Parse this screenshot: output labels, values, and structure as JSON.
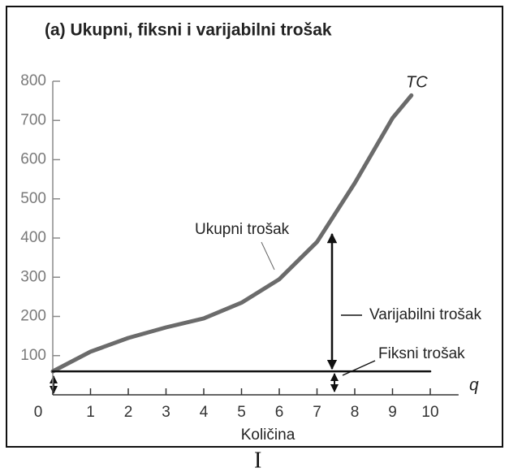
{
  "chart_data": {
    "type": "line",
    "title": "(a) Ukupni, fiksni i varijabilni trošak",
    "x_label": "Količina",
    "x_symbol": "q",
    "x": [
      0,
      1,
      2,
      3,
      4,
      5,
      6,
      7,
      8,
      9,
      9.5,
      10
    ],
    "series": [
      {
        "name": "TC",
        "color": "#6b6b6b",
        "values": [
          60,
          110,
          145,
          172,
          195,
          235,
          295,
          390,
          540,
          706,
          764,
          null
        ]
      },
      {
        "name": "Fiksni trošak",
        "color": "#111111",
        "values": [
          60,
          60,
          60,
          60,
          60,
          60,
          60,
          60,
          60,
          60,
          60,
          60
        ]
      }
    ],
    "annotations": [
      "Ukupni trošak",
      "Varijabilni trošak"
    ],
    "xlim": [
      0,
      10.75
    ],
    "xticks": [
      0,
      1,
      2,
      3,
      4,
      5,
      6,
      7,
      8,
      9,
      10
    ],
    "ylim": [
      0,
      800
    ],
    "yticks": [
      100,
      200,
      300,
      400,
      500,
      600,
      700,
      800
    ],
    "grid": false
  },
  "caption": "I"
}
